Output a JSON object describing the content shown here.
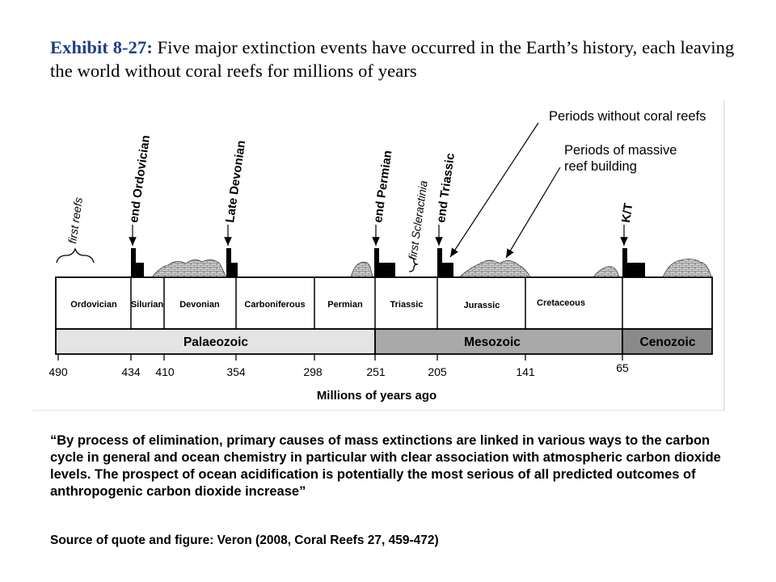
{
  "header": {
    "title_label": "Exhibit 8-27:",
    "title_text": " Five major extinction events have occurred in the Earth’s history, each leaving the world without coral reefs for millions of years"
  },
  "legend": {
    "no_reefs": "Periods without coral reefs",
    "massive_reefs_line1": "Periods of massive",
    "massive_reefs_line2": "reef building"
  },
  "events": {
    "first_reefs": "first reefs",
    "first_scleractinia": "first Scleractinia",
    "end_ordovician": "end Ordovician",
    "late_devonian": "Late Devonian",
    "end_permian": "end Permian",
    "end_triassic": "end Triassic",
    "kt": "K/T"
  },
  "periods": {
    "ordovician": "Ordovician",
    "silurian": "Silurian",
    "devonian": "Devonian",
    "carboniferous": "Carboniferous",
    "permian": "Permian",
    "triassic": "Triassic",
    "jurassic": "Jurassic",
    "cretaceous": "Cretaceous"
  },
  "eras": {
    "palaeozoic": "Palaeozoic",
    "mesozoic": "Mesozoic",
    "cenozoic": "Cenozoic",
    "palaeozoic_color": "#e4e4e4",
    "mesozoic_color": "#a9a9a9",
    "cenozoic_color": "#8a8a8a"
  },
  "axis": {
    "ticks": [
      "490",
      "434",
      "410",
      "354",
      "298",
      "251",
      "205",
      "141",
      "65"
    ],
    "label": "Millions of years ago"
  },
  "quote": "“By process of elimination, primary causes of mass extinctions are linked in various ways to the carbon cycle in general and ocean chemistry in particular with clear association with atmospheric carbon dioxide levels. The prospect of ocean acidification is potentially the most serious of all predicted outcomes of anthropogenic carbon dioxide increase”",
  "source": "Source of quote and figure: Veron (2008, Coral Reefs 27, 459-472)"
}
